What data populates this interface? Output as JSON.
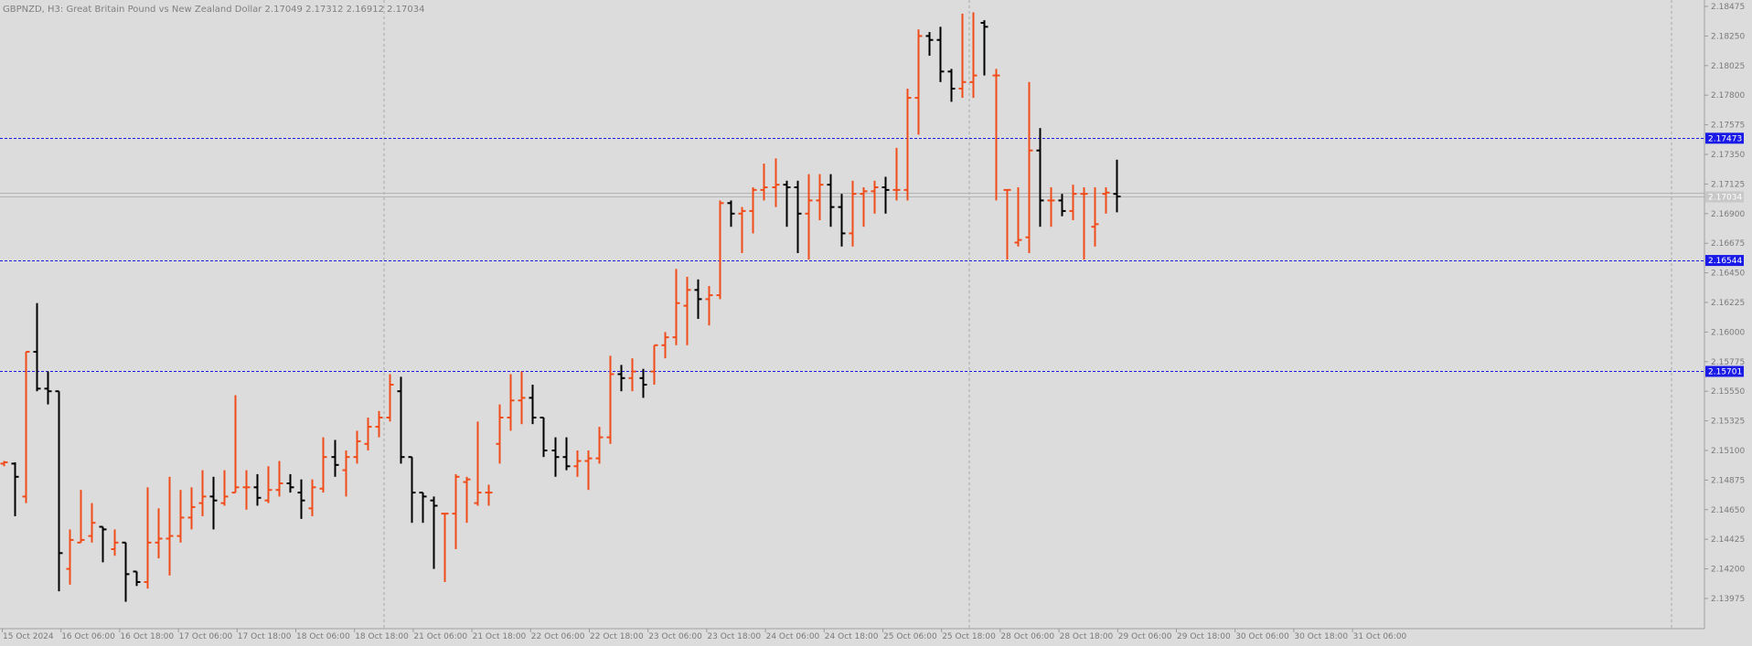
{
  "window": {
    "title": "GBPNZD, H3:  Great Britain Pound vs New Zealand Dollar  2.17049 2.17312 2.16912 2.17034"
  },
  "colors": {
    "background": "#dcdcdc",
    "grid": "#a9a9a9",
    "bull": "#f04c1a",
    "bear": "#000000",
    "level_line": "#1a1ae6",
    "level_label_bg": "#1a1ae6",
    "bid_line": "#b4b4b4",
    "axis_text": "#7a7a7a"
  },
  "chart_data": {
    "type": "ohlc-bar",
    "symbol": "GBPNZD",
    "timeframe": "H3",
    "description": "Great Britain Pound vs New Zealand Dollar",
    "ohlc_header": {
      "open": 2.17049,
      "high": 2.17312,
      "low": 2.16912,
      "close": 2.17034
    },
    "ylim": [
      2.138,
      2.185
    ],
    "y_ticks": [
      "2.18475",
      "2.18250",
      "2.18025",
      "2.17800",
      "2.17575",
      "2.17350",
      "2.17125",
      "2.16900",
      "2.16675",
      "2.16450",
      "2.16225",
      "2.16000",
      "2.15775",
      "2.15550",
      "2.15325",
      "2.15100",
      "2.14875",
      "2.14650",
      "2.14425",
      "2.14200",
      "2.13975"
    ],
    "x_labels": [
      "15 Oct 2024",
      "16 Oct 06:00",
      "16 Oct 18:00",
      "17 Oct 06:00",
      "17 Oct 18:00",
      "18 Oct 06:00",
      "18 Oct 18:00",
      "21 Oct 06:00",
      "21 Oct 18:00",
      "22 Oct 06:00",
      "22 Oct 18:00",
      "23 Oct 06:00",
      "23 Oct 18:00",
      "24 Oct 06:00",
      "24 Oct 18:00",
      "25 Oct 06:00",
      "25 Oct 18:00",
      "28 Oct 06:00",
      "28 Oct 18:00",
      "29 Oct 06:00",
      "29 Oct 18:00",
      "30 Oct 06:00",
      "30 Oct 18:00",
      "31 Oct 06:00"
    ],
    "levels": [
      {
        "value": 2.17473,
        "label": "2.17473"
      },
      {
        "value": 2.16544,
        "label": "2.16544"
      },
      {
        "value": 2.15701,
        "label": "2.15701"
      }
    ],
    "bid": {
      "value": 2.17034,
      "label": "2.17034"
    },
    "bars": [
      {
        "o": 2.15,
        "h": 2.1502,
        "l": 2.1498,
        "c": 2.1501
      },
      {
        "o": 2.15,
        "h": 2.1501,
        "l": 2.146,
        "c": 2.149
      },
      {
        "o": 2.1475,
        "h": 2.1585,
        "l": 2.147,
        "c": 2.1585
      },
      {
        "o": 2.1585,
        "h": 2.1622,
        "l": 2.1555,
        "c": 2.1557
      },
      {
        "o": 2.1557,
        "h": 2.157,
        "l": 2.1545,
        "c": 2.1555
      },
      {
        "o": 2.1555,
        "h": 2.1555,
        "l": 2.1403,
        "c": 2.1432
      },
      {
        "o": 2.142,
        "h": 2.145,
        "l": 2.1408,
        "c": 2.1442
      },
      {
        "o": 2.144,
        "h": 2.148,
        "l": 2.144,
        "c": 2.1442
      },
      {
        "o": 2.1445,
        "h": 2.147,
        "l": 2.144,
        "c": 2.1455
      },
      {
        "o": 2.1452,
        "h": 2.1452,
        "l": 2.1425,
        "c": 2.145
      },
      {
        "o": 2.1435,
        "h": 2.145,
        "l": 2.143,
        "c": 2.144
      },
      {
        "o": 2.144,
        "h": 2.144,
        "l": 2.1395,
        "c": 2.1416
      },
      {
        "o": 2.1418,
        "h": 2.1418,
        "l": 2.1407,
        "c": 2.141
      },
      {
        "o": 2.141,
        "h": 2.1482,
        "l": 2.1405,
        "c": 2.144
      },
      {
        "o": 2.144,
        "h": 2.1466,
        "l": 2.1428,
        "c": 2.1443
      },
      {
        "o": 2.1443,
        "h": 2.149,
        "l": 2.1415,
        "c": 2.1445
      },
      {
        "o": 2.1445,
        "h": 2.148,
        "l": 2.144,
        "c": 2.1459
      },
      {
        "o": 2.1459,
        "h": 2.1482,
        "l": 2.145,
        "c": 2.1467
      },
      {
        "o": 2.147,
        "h": 2.1495,
        "l": 2.146,
        "c": 2.1475
      },
      {
        "o": 2.1475,
        "h": 2.149,
        "l": 2.145,
        "c": 2.1472
      },
      {
        "o": 2.147,
        "h": 2.1495,
        "l": 2.1468,
        "c": 2.1475
      },
      {
        "o": 2.1478,
        "h": 2.1552,
        "l": 2.1478,
        "c": 2.1482
      },
      {
        "o": 2.1482,
        "h": 2.1495,
        "l": 2.1465,
        "c": 2.1482
      },
      {
        "o": 2.1482,
        "h": 2.1492,
        "l": 2.1468,
        "c": 2.1474
      },
      {
        "o": 2.1472,
        "h": 2.1498,
        "l": 2.147,
        "c": 2.148
      },
      {
        "o": 2.148,
        "h": 2.1502,
        "l": 2.1475,
        "c": 2.1485
      },
      {
        "o": 2.1485,
        "h": 2.1492,
        "l": 2.1478,
        "c": 2.1482
      },
      {
        "o": 2.1478,
        "h": 2.1488,
        "l": 2.1458,
        "c": 2.1472
      },
      {
        "o": 2.1466,
        "h": 2.1488,
        "l": 2.146,
        "c": 2.1482
      },
      {
        "o": 2.1481,
        "h": 2.152,
        "l": 2.1478,
        "c": 2.1505
      },
      {
        "o": 2.1505,
        "h": 2.1518,
        "l": 2.149,
        "c": 2.1499
      },
      {
        "o": 2.1495,
        "h": 2.151,
        "l": 2.1475,
        "c": 2.1505
      },
      {
        "o": 2.1505,
        "h": 2.1525,
        "l": 2.15,
        "c": 2.1517
      },
      {
        "o": 2.1515,
        "h": 2.1535,
        "l": 2.151,
        "c": 2.1528
      },
      {
        "o": 2.1528,
        "h": 2.154,
        "l": 2.152,
        "c": 2.1535
      },
      {
        "o": 2.1535,
        "h": 2.1568,
        "l": 2.1532,
        "c": 2.156
      },
      {
        "o": 2.1555,
        "h": 2.1566,
        "l": 2.15,
        "c": 2.1505
      },
      {
        "o": 2.1505,
        "h": 2.1505,
        "l": 2.1455,
        "c": 2.1478
      },
      {
        "o": 2.1478,
        "h": 2.1478,
        "l": 2.1455,
        "c": 2.1475
      },
      {
        "o": 2.1472,
        "h": 2.1475,
        "l": 2.142,
        "c": 2.1468
      },
      {
        "o": 2.1462,
        "h": 2.1462,
        "l": 2.141,
        "c": 2.1462
      },
      {
        "o": 2.1462,
        "h": 2.1492,
        "l": 2.1435,
        "c": 2.149
      },
      {
        "o": 2.1486,
        "h": 2.149,
        "l": 2.1455,
        "c": 2.1488
      },
      {
        "o": 2.147,
        "h": 2.1532,
        "l": 2.1468,
        "c": 2.1478
      },
      {
        "o": 2.1478,
        "h": 2.1484,
        "l": 2.1468,
        "c": 2.1478
      },
      {
        "o": 2.1515,
        "h": 2.1545,
        "l": 2.15,
        "c": 2.1535
      },
      {
        "o": 2.1535,
        "h": 2.1568,
        "l": 2.1525,
        "c": 2.1548
      },
      {
        "o": 2.1548,
        "h": 2.157,
        "l": 2.153,
        "c": 2.155
      },
      {
        "o": 2.155,
        "h": 2.156,
        "l": 2.153,
        "c": 2.1535
      },
      {
        "o": 2.1535,
        "h": 2.1535,
        "l": 2.1505,
        "c": 2.151
      },
      {
        "o": 2.151,
        "h": 2.152,
        "l": 2.149,
        "c": 2.1505
      },
      {
        "o": 2.1505,
        "h": 2.152,
        "l": 2.1495,
        "c": 2.1498
      },
      {
        "o": 2.1498,
        "h": 2.151,
        "l": 2.149,
        "c": 2.1502
      },
      {
        "o": 2.1502,
        "h": 2.151,
        "l": 2.148,
        "c": 2.1504
      },
      {
        "o": 2.1504,
        "h": 2.1528,
        "l": 2.15,
        "c": 2.152
      },
      {
        "o": 2.152,
        "h": 2.1582,
        "l": 2.1515,
        "c": 2.1568
      },
      {
        "o": 2.1568,
        "h": 2.1575,
        "l": 2.1555,
        "c": 2.1565
      },
      {
        "o": 2.1565,
        "h": 2.158,
        "l": 2.1555,
        "c": 2.157
      },
      {
        "o": 2.1565,
        "h": 2.1572,
        "l": 2.155,
        "c": 2.156
      },
      {
        "o": 2.157,
        "h": 2.159,
        "l": 2.156,
        "c": 2.159
      },
      {
        "o": 2.159,
        "h": 2.16,
        "l": 2.158,
        "c": 2.1596
      },
      {
        "o": 2.1596,
        "h": 2.1648,
        "l": 2.159,
        "c": 2.1622
      },
      {
        "o": 2.162,
        "h": 2.1642,
        "l": 2.159,
        "c": 2.1632
      },
      {
        "o": 2.1632,
        "h": 2.164,
        "l": 2.161,
        "c": 2.1625
      },
      {
        "o": 2.1625,
        "h": 2.1635,
        "l": 2.1605,
        "c": 2.1628
      },
      {
        "o": 2.1628,
        "h": 2.17,
        "l": 2.1625,
        "c": 2.1698
      },
      {
        "o": 2.1698,
        "h": 2.17,
        "l": 2.168,
        "c": 2.169
      },
      {
        "o": 2.169,
        "h": 2.1695,
        "l": 2.166,
        "c": 2.1692
      },
      {
        "o": 2.1692,
        "h": 2.171,
        "l": 2.1675,
        "c": 2.1708
      },
      {
        "o": 2.1708,
        "h": 2.1728,
        "l": 2.17,
        "c": 2.171
      },
      {
        "o": 2.171,
        "h": 2.1732,
        "l": 2.1695,
        "c": 2.1712
      },
      {
        "o": 2.1712,
        "h": 2.1715,
        "l": 2.168,
        "c": 2.171
      },
      {
        "o": 2.171,
        "h": 2.1715,
        "l": 2.166,
        "c": 2.169
      },
      {
        "o": 2.169,
        "h": 2.172,
        "l": 2.1655,
        "c": 2.17
      },
      {
        "o": 2.17,
        "h": 2.172,
        "l": 2.1685,
        "c": 2.1712
      },
      {
        "o": 2.1712,
        "h": 2.172,
        "l": 2.168,
        "c": 2.1695
      },
      {
        "o": 2.1695,
        "h": 2.1705,
        "l": 2.1665,
        "c": 2.1675
      },
      {
        "o": 2.1675,
        "h": 2.1715,
        "l": 2.1665,
        "c": 2.1705
      },
      {
        "o": 2.1705,
        "h": 2.171,
        "l": 2.168,
        "c": 2.1707
      },
      {
        "o": 2.1707,
        "h": 2.1715,
        "l": 2.169,
        "c": 2.171
      },
      {
        "o": 2.171,
        "h": 2.1718,
        "l": 2.169,
        "c": 2.1708
      },
      {
        "o": 2.1708,
        "h": 2.174,
        "l": 2.17,
        "c": 2.1708
      },
      {
        "o": 2.1708,
        "h": 2.1785,
        "l": 2.17,
        "c": 2.1778
      },
      {
        "o": 2.1778,
        "h": 2.183,
        "l": 2.175,
        "c": 2.1825
      },
      {
        "o": 2.1825,
        "h": 2.1828,
        "l": 2.181,
        "c": 2.1822
      },
      {
        "o": 2.1822,
        "h": 2.1832,
        "l": 2.179,
        "c": 2.1798
      },
      {
        "o": 2.1798,
        "h": 2.18,
        "l": 2.1775,
        "c": 2.1785
      },
      {
        "o": 2.1785,
        "h": 2.1842,
        "l": 2.1778,
        "c": 2.179
      },
      {
        "o": 2.179,
        "h": 2.1843,
        "l": 2.1778,
        "c": 2.1795
      },
      {
        "o": 2.1835,
        "h": 2.1837,
        "l": 2.1795,
        "c": 2.1832
      },
      {
        "o": 2.1795,
        "h": 2.18,
        "l": 2.17,
        "c": 2.1795
      },
      {
        "o": 2.1708,
        "h": 2.1708,
        "l": 2.1655,
        "c": 2.1708
      },
      {
        "o": 2.1668,
        "h": 2.171,
        "l": 2.1665,
        "c": 2.167
      },
      {
        "o": 2.1672,
        "h": 2.179,
        "l": 2.166,
        "c": 2.1738
      },
      {
        "o": 2.1738,
        "h": 2.1755,
        "l": 2.168,
        "c": 2.17
      },
      {
        "o": 2.17,
        "h": 2.171,
        "l": 2.168,
        "c": 2.17
      },
      {
        "o": 2.17,
        "h": 2.1705,
        "l": 2.1688,
        "c": 2.1692
      },
      {
        "o": 2.1692,
        "h": 2.1712,
        "l": 2.1685,
        "c": 2.1705
      },
      {
        "o": 2.1705,
        "h": 2.171,
        "l": 2.1655,
        "c": 2.1705
      },
      {
        "o": 2.168,
        "h": 2.171,
        "l": 2.1665,
        "c": 2.1682
      },
      {
        "o": 2.1705,
        "h": 2.171,
        "l": 2.169,
        "c": 2.1706
      },
      {
        "o": 2.1705,
        "h": 2.1731,
        "l": 2.1691,
        "c": 2.1703
      }
    ]
  }
}
